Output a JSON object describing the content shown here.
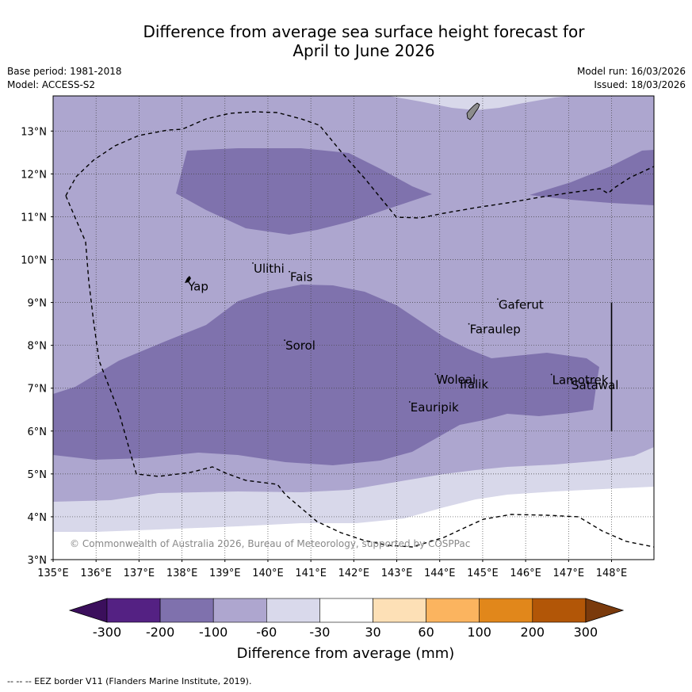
{
  "title_line1": "Difference from average sea surface height forecast for",
  "title_line2": "April to June 2026",
  "base_period": "Base period: 1981-2018",
  "model": "Model: ACCESS-S2",
  "model_run": "Model run: 16/03/2026",
  "issued": "Issued: 18/03/2026",
  "copyright": "© Commonwealth of Australia 2026, Bureau of Meteorology, supported by COSPPac",
  "footer": "--  --  -- EEZ border V11 (Flanders Marine Institute, 2019).",
  "map": {
    "lon_min": 135,
    "lon_max": 149,
    "lat_min": 3,
    "lat_max": 13.8,
    "lon_ticks": [
      135,
      136,
      137,
      138,
      139,
      140,
      141,
      142,
      143,
      144,
      145,
      146,
      147,
      148
    ],
    "lat_ticks": [
      3,
      4,
      5,
      6,
      7,
      8,
      9,
      10,
      11,
      12,
      13
    ],
    "lon_labels": [
      "135°E",
      "136°E",
      "137°E",
      "138°E",
      "139°E",
      "140°E",
      "141°E",
      "142°E",
      "143°E",
      "144°E",
      "145°E",
      "146°E",
      "147°E",
      "148°E"
    ],
    "lat_labels": [
      "3°N",
      "4°N",
      "5°N",
      "6°N",
      "7°N",
      "8°N",
      "9°N",
      "10°N",
      "11°N",
      "12°N",
      "13°N"
    ],
    "places": [
      {
        "name": "Yap",
        "lon": 138.12,
        "lat": 9.5
      },
      {
        "name": "Ulithi",
        "lon": 139.65,
        "lat": 9.92
      },
      {
        "name": "Fais",
        "lon": 140.5,
        "lat": 9.72
      },
      {
        "name": "Gaferut",
        "lon": 145.35,
        "lat": 9.08
      },
      {
        "name": "Faraulep",
        "lon": 144.68,
        "lat": 8.5
      },
      {
        "name": "Sorol",
        "lon": 140.39,
        "lat": 8.12
      },
      {
        "name": "Woleai",
        "lon": 143.9,
        "lat": 7.33
      },
      {
        "name": "Ifalik",
        "lon": 144.45,
        "lat": 7.22
      },
      {
        "name": "Lamotrek",
        "lon": 146.6,
        "lat": 7.32
      },
      {
        "name": "Satawal",
        "lon": 147.05,
        "lat": 7.2
      },
      {
        "name": "Eauripik",
        "lon": 143.3,
        "lat": 6.68
      }
    ],
    "boundary_line": {
      "lon": 148,
      "lat_from": 6,
      "lat_to": 9
    }
  },
  "legend": {
    "title": "Difference from average (mm)",
    "tick_labels": [
      "-300",
      "-200",
      "-100",
      "-60",
      "-30",
      "30",
      "60",
      "100",
      "200",
      "300"
    ],
    "colors": [
      "#3b0f5c",
      "#542183",
      "#7f71ad",
      "#aea6cf",
      "#d9d9eb",
      "#ffffff",
      "#fde0b6",
      "#fbb45f",
      "#e1871b",
      "#b25607",
      "#7a3a0c"
    ]
  },
  "colors": {
    "band_lt": "#d8d8ea",
    "band_md": "#ada6cf",
    "band_dk": "#7f72ad",
    "land": "#8c8c8c"
  }
}
